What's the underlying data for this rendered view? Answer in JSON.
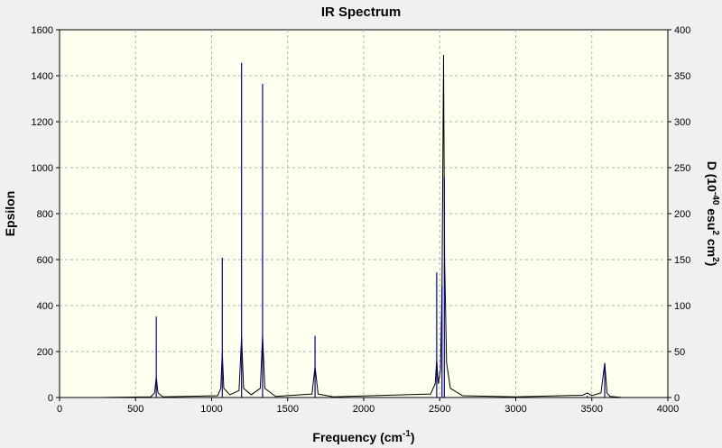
{
  "chart_data": {
    "type": "line",
    "title": "IR Spectrum",
    "x_label_parts": [
      "Frequency (cm",
      "-1",
      ")"
    ],
    "y_label": "Epsilon",
    "y2_label_parts": [
      "D (10",
      "-40",
      " esu",
      "2",
      " cm",
      "2",
      ")"
    ],
    "xlim": [
      0,
      4000
    ],
    "xticks": [
      0,
      500,
      1000,
      1500,
      2000,
      2500,
      3000,
      3500,
      4000
    ],
    "ylim": [
      0,
      1600
    ],
    "yticks": [
      0,
      200,
      400,
      600,
      800,
      1000,
      1200,
      1400,
      1600
    ],
    "y2lim": [
      0,
      400
    ],
    "y2ticks": [
      0,
      50,
      100,
      150,
      200,
      250,
      300,
      350,
      400
    ],
    "grid": true,
    "series": [
      {
        "color": "#000000",
        "x": [
          250,
          600,
          625,
          636,
          647,
          680,
          1040,
          1060,
          1070,
          1080,
          1120,
          1180,
          1197,
          1210,
          1260,
          1320,
          1335,
          1350,
          1420,
          1660,
          1680,
          1700,
          1800,
          2440,
          2470,
          2480,
          2490,
          2505,
          2515,
          2525,
          2532,
          2545,
          2570,
          2650,
          3000,
          3440,
          3470,
          3500,
          3560,
          3585,
          3600,
          3620,
          3700
        ],
        "values": [
          0,
          3,
          20,
          90,
          20,
          3,
          8,
          40,
          195,
          40,
          12,
          30,
          265,
          40,
          12,
          40,
          270,
          40,
          5,
          15,
          135,
          15,
          3,
          15,
          60,
          165,
          60,
          120,
          480,
          1490,
          600,
          150,
          40,
          8,
          3,
          10,
          20,
          8,
          20,
          150,
          20,
          5,
          0
        ]
      },
      {
        "color": "#000099",
        "axis": "y2",
        "style": "sticks",
        "x": [
          636,
          1070,
          1197,
          1335,
          1680,
          2480,
          2515,
          2530,
          3470,
          3585
        ],
        "values": [
          88,
          152,
          364,
          341,
          67,
          136,
          121,
          240,
          2,
          37
        ]
      }
    ]
  }
}
